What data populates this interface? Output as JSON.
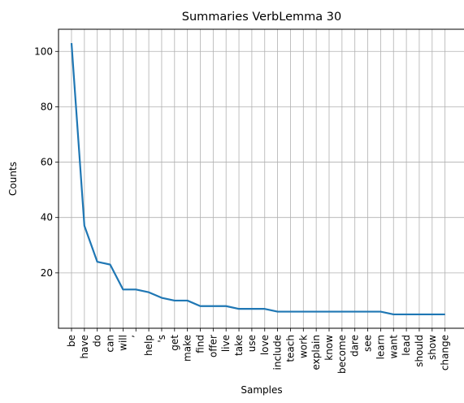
{
  "chart_data": {
    "type": "line",
    "title": "Summaries VerbLemma 30",
    "xlabel": "Samples",
    "ylabel": "Counts",
    "categories": [
      "be",
      "have",
      "do",
      "can",
      "will",
      "’",
      "help",
      "'s",
      "get",
      "make",
      "find",
      "offer",
      "live",
      "take",
      "use",
      "love",
      "include",
      "teach",
      "work",
      "explain",
      "know",
      "become",
      "dare",
      "see",
      "learn",
      "want",
      "lead",
      "should",
      "show",
      "change"
    ],
    "values": [
      103,
      37,
      24,
      23,
      14,
      14,
      13,
      11,
      10,
      10,
      8,
      8,
      8,
      7,
      7,
      7,
      6,
      6,
      6,
      6,
      6,
      6,
      6,
      6,
      6,
      5,
      5,
      5,
      5,
      5
    ],
    "yticks": [
      20,
      40,
      60,
      80,
      100
    ],
    "ylim": [
      0,
      108
    ],
    "grid": true,
    "line_color": "#1f77b4"
  }
}
